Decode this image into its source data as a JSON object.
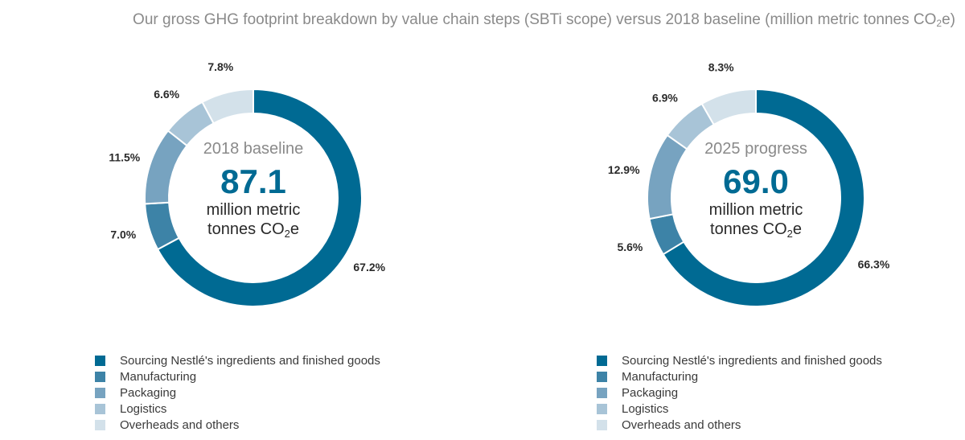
{
  "title": {
    "prefix": "Our gross GHG footprint breakdown by value chain steps (SBTi scope) versus 2018 baseline (million metric tonnes CO",
    "sub": "2",
    "suffix": "e)"
  },
  "colors": {
    "sourcing": "#006a93",
    "manufacturing": "#3d83a7",
    "packaging": "#77a3c0",
    "logistics": "#a8c4d7",
    "overheads": "#d3e1ea"
  },
  "chart_data": [
    {
      "type": "pie",
      "variant": "donut",
      "center_label": "2018 baseline",
      "center_value": "87.1",
      "center_unit_line1": "million metric",
      "center_unit_line2_prefix": "tonnes CO",
      "center_unit_line2_sub": "2",
      "center_unit_line2_suffix": "e",
      "categories": [
        "Sourcing Nestlé's ingredients and finished goods",
        "Manufacturing",
        "Packaging",
        "Logistics",
        "Overheads and others"
      ],
      "values": [
        67.2,
        7.0,
        11.5,
        6.6,
        7.8
      ],
      "labels": [
        "67.2%",
        "7.0%",
        "11.5%",
        "6.6%",
        "7.8%"
      ]
    },
    {
      "type": "pie",
      "variant": "donut",
      "center_label": "2025 progress",
      "center_value": "69.0",
      "center_unit_line1": "million metric",
      "center_unit_line2_prefix": "tonnes CO",
      "center_unit_line2_sub": "2",
      "center_unit_line2_suffix": "e",
      "categories": [
        "Sourcing Nestlé's ingredients and finished goods",
        "Manufacturing",
        "Packaging",
        "Logistics",
        "Overheads and others"
      ],
      "values": [
        66.3,
        5.6,
        12.9,
        6.9,
        8.3
      ],
      "labels": [
        "66.3%",
        "5.6%",
        "12.9%",
        "6.9%",
        "8.3%"
      ]
    }
  ],
  "legend": [
    "Sourcing Nestlé's ingredients and finished goods",
    "Manufacturing",
    "Packaging",
    "Logistics",
    "Overheads and others"
  ]
}
